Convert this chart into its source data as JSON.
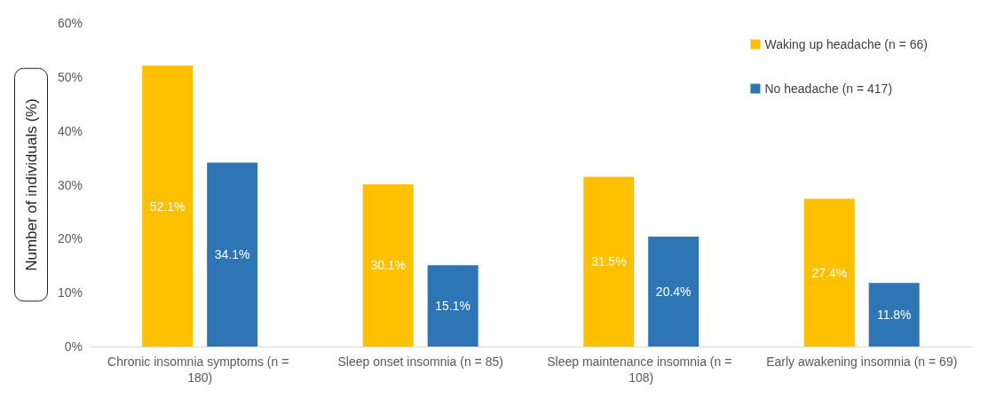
{
  "chart_data": {
    "type": "bar",
    "ylabel": "Number of individuals (%)",
    "categories": [
      "Chronic insomnia symptoms (n = 180)",
      "Sleep onset insomnia (n = 85)",
      "Sleep maintenance insomnia (n = 108)",
      "Early awakening insomnia (n = 69)"
    ],
    "series": [
      {
        "name": "Waking up headache (n = 66)",
        "color": "#ffc000",
        "values": [
          52.1,
          30.1,
          31.5,
          27.4
        ],
        "value_labels": [
          "52.1%",
          "30.1%",
          "31.5%",
          "27.4%"
        ]
      },
      {
        "name": "No headache (n = 417)",
        "color": "#2e75b6",
        "values": [
          34.1,
          15.1,
          20.4,
          11.8
        ],
        "value_labels": [
          "34.1%",
          "15.1%",
          "20.4%",
          "11.8%"
        ]
      }
    ],
    "ylim": [
      0,
      60
    ],
    "yticks": [
      {
        "value": 0,
        "label": "0%"
      },
      {
        "value": 10,
        "label": "10%"
      },
      {
        "value": 20,
        "label": "20%"
      },
      {
        "value": 30,
        "label": "30%"
      },
      {
        "value": 40,
        "label": "40%"
      },
      {
        "value": 50,
        "label": "50%"
      },
      {
        "value": 60,
        "label": "60%"
      }
    ],
    "grid": false,
    "legend": "top right"
  }
}
